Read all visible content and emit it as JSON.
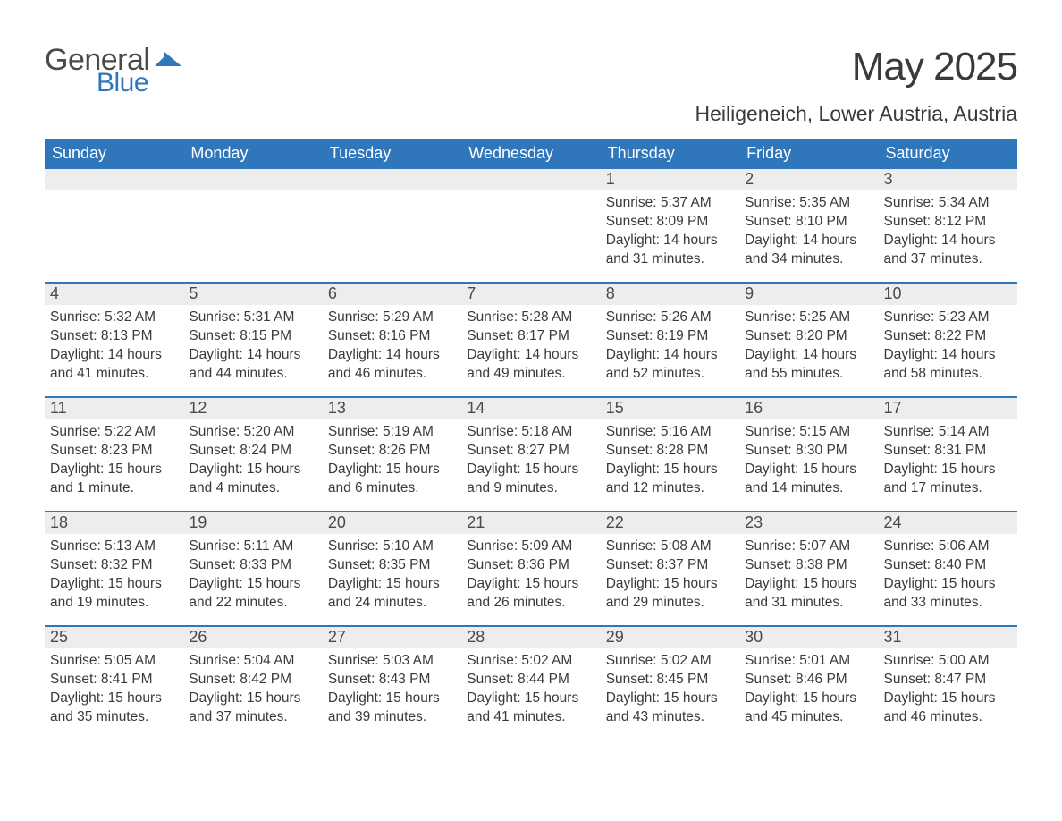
{
  "logo": {
    "general": "General",
    "blue": "Blue"
  },
  "title": "May 2025",
  "location": "Heiligeneich, Lower Austria, Austria",
  "colors": {
    "header_bg": "#2f76ba",
    "header_text": "#ffffff",
    "daynum_bg": "#ededed",
    "text": "#3a3a3a",
    "week_border": "#2f76ba",
    "logo_blue": "#2f76ba",
    "page_bg": "#ffffff"
  },
  "weekdays": [
    "Sunday",
    "Monday",
    "Tuesday",
    "Wednesday",
    "Thursday",
    "Friday",
    "Saturday"
  ],
  "weeks": [
    [
      {
        "n": "",
        "sunrise": "",
        "sunset": "",
        "daylight": ""
      },
      {
        "n": "",
        "sunrise": "",
        "sunset": "",
        "daylight": ""
      },
      {
        "n": "",
        "sunrise": "",
        "sunset": "",
        "daylight": ""
      },
      {
        "n": "",
        "sunrise": "",
        "sunset": "",
        "daylight": ""
      },
      {
        "n": "1",
        "sunrise": "Sunrise: 5:37 AM",
        "sunset": "Sunset: 8:09 PM",
        "daylight": "Daylight: 14 hours and 31 minutes."
      },
      {
        "n": "2",
        "sunrise": "Sunrise: 5:35 AM",
        "sunset": "Sunset: 8:10 PM",
        "daylight": "Daylight: 14 hours and 34 minutes."
      },
      {
        "n": "3",
        "sunrise": "Sunrise: 5:34 AM",
        "sunset": "Sunset: 8:12 PM",
        "daylight": "Daylight: 14 hours and 37 minutes."
      }
    ],
    [
      {
        "n": "4",
        "sunrise": "Sunrise: 5:32 AM",
        "sunset": "Sunset: 8:13 PM",
        "daylight": "Daylight: 14 hours and 41 minutes."
      },
      {
        "n": "5",
        "sunrise": "Sunrise: 5:31 AM",
        "sunset": "Sunset: 8:15 PM",
        "daylight": "Daylight: 14 hours and 44 minutes."
      },
      {
        "n": "6",
        "sunrise": "Sunrise: 5:29 AM",
        "sunset": "Sunset: 8:16 PM",
        "daylight": "Daylight: 14 hours and 46 minutes."
      },
      {
        "n": "7",
        "sunrise": "Sunrise: 5:28 AM",
        "sunset": "Sunset: 8:17 PM",
        "daylight": "Daylight: 14 hours and 49 minutes."
      },
      {
        "n": "8",
        "sunrise": "Sunrise: 5:26 AM",
        "sunset": "Sunset: 8:19 PM",
        "daylight": "Daylight: 14 hours and 52 minutes."
      },
      {
        "n": "9",
        "sunrise": "Sunrise: 5:25 AM",
        "sunset": "Sunset: 8:20 PM",
        "daylight": "Daylight: 14 hours and 55 minutes."
      },
      {
        "n": "10",
        "sunrise": "Sunrise: 5:23 AM",
        "sunset": "Sunset: 8:22 PM",
        "daylight": "Daylight: 14 hours and 58 minutes."
      }
    ],
    [
      {
        "n": "11",
        "sunrise": "Sunrise: 5:22 AM",
        "sunset": "Sunset: 8:23 PM",
        "daylight": "Daylight: 15 hours and 1 minute."
      },
      {
        "n": "12",
        "sunrise": "Sunrise: 5:20 AM",
        "sunset": "Sunset: 8:24 PM",
        "daylight": "Daylight: 15 hours and 4 minutes."
      },
      {
        "n": "13",
        "sunrise": "Sunrise: 5:19 AM",
        "sunset": "Sunset: 8:26 PM",
        "daylight": "Daylight: 15 hours and 6 minutes."
      },
      {
        "n": "14",
        "sunrise": "Sunrise: 5:18 AM",
        "sunset": "Sunset: 8:27 PM",
        "daylight": "Daylight: 15 hours and 9 minutes."
      },
      {
        "n": "15",
        "sunrise": "Sunrise: 5:16 AM",
        "sunset": "Sunset: 8:28 PM",
        "daylight": "Daylight: 15 hours and 12 minutes."
      },
      {
        "n": "16",
        "sunrise": "Sunrise: 5:15 AM",
        "sunset": "Sunset: 8:30 PM",
        "daylight": "Daylight: 15 hours and 14 minutes."
      },
      {
        "n": "17",
        "sunrise": "Sunrise: 5:14 AM",
        "sunset": "Sunset: 8:31 PM",
        "daylight": "Daylight: 15 hours and 17 minutes."
      }
    ],
    [
      {
        "n": "18",
        "sunrise": "Sunrise: 5:13 AM",
        "sunset": "Sunset: 8:32 PM",
        "daylight": "Daylight: 15 hours and 19 minutes."
      },
      {
        "n": "19",
        "sunrise": "Sunrise: 5:11 AM",
        "sunset": "Sunset: 8:33 PM",
        "daylight": "Daylight: 15 hours and 22 minutes."
      },
      {
        "n": "20",
        "sunrise": "Sunrise: 5:10 AM",
        "sunset": "Sunset: 8:35 PM",
        "daylight": "Daylight: 15 hours and 24 minutes."
      },
      {
        "n": "21",
        "sunrise": "Sunrise: 5:09 AM",
        "sunset": "Sunset: 8:36 PM",
        "daylight": "Daylight: 15 hours and 26 minutes."
      },
      {
        "n": "22",
        "sunrise": "Sunrise: 5:08 AM",
        "sunset": "Sunset: 8:37 PM",
        "daylight": "Daylight: 15 hours and 29 minutes."
      },
      {
        "n": "23",
        "sunrise": "Sunrise: 5:07 AM",
        "sunset": "Sunset: 8:38 PM",
        "daylight": "Daylight: 15 hours and 31 minutes."
      },
      {
        "n": "24",
        "sunrise": "Sunrise: 5:06 AM",
        "sunset": "Sunset: 8:40 PM",
        "daylight": "Daylight: 15 hours and 33 minutes."
      }
    ],
    [
      {
        "n": "25",
        "sunrise": "Sunrise: 5:05 AM",
        "sunset": "Sunset: 8:41 PM",
        "daylight": "Daylight: 15 hours and 35 minutes."
      },
      {
        "n": "26",
        "sunrise": "Sunrise: 5:04 AM",
        "sunset": "Sunset: 8:42 PM",
        "daylight": "Daylight: 15 hours and 37 minutes."
      },
      {
        "n": "27",
        "sunrise": "Sunrise: 5:03 AM",
        "sunset": "Sunset: 8:43 PM",
        "daylight": "Daylight: 15 hours and 39 minutes."
      },
      {
        "n": "28",
        "sunrise": "Sunrise: 5:02 AM",
        "sunset": "Sunset: 8:44 PM",
        "daylight": "Daylight: 15 hours and 41 minutes."
      },
      {
        "n": "29",
        "sunrise": "Sunrise: 5:02 AM",
        "sunset": "Sunset: 8:45 PM",
        "daylight": "Daylight: 15 hours and 43 minutes."
      },
      {
        "n": "30",
        "sunrise": "Sunrise: 5:01 AM",
        "sunset": "Sunset: 8:46 PM",
        "daylight": "Daylight: 15 hours and 45 minutes."
      },
      {
        "n": "31",
        "sunrise": "Sunrise: 5:00 AM",
        "sunset": "Sunset: 8:47 PM",
        "daylight": "Daylight: 15 hours and 46 minutes."
      }
    ]
  ]
}
